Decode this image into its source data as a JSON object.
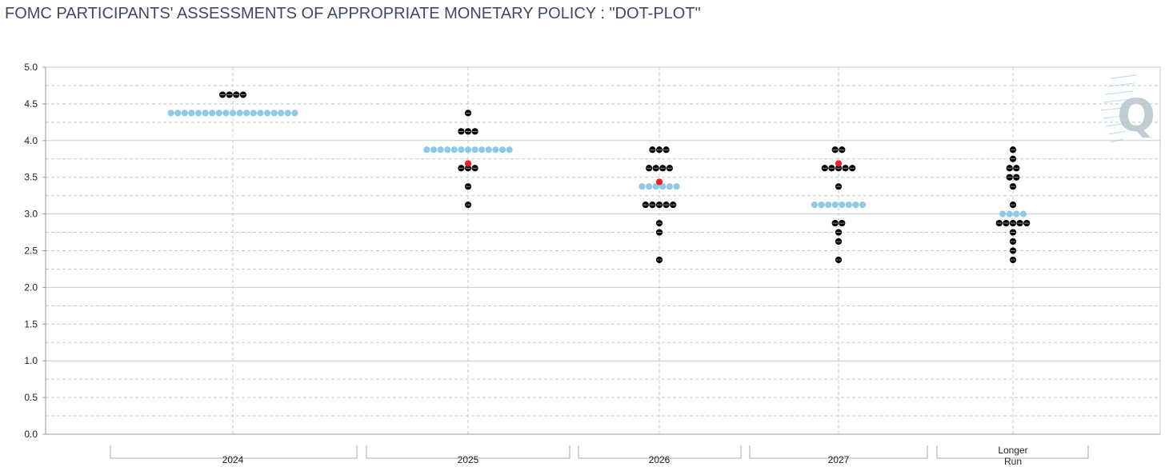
{
  "chart_data": {
    "type": "scatter",
    "title": "FOMC PARTICIPANTS' ASSESSMENTS OF APPROPRIATE MONETARY POLICY : \"DOT-PLOT\"",
    "categories": [
      "2024",
      "2025",
      "2026",
      "2027",
      "Longer Run"
    ],
    "category_lines": [
      [
        "2024"
      ],
      [
        "2025"
      ],
      [
        "2026"
      ],
      [
        "2027"
      ],
      [
        "Longer",
        "Run"
      ]
    ],
    "ylim": [
      0,
      5
    ],
    "ytick_labels": [
      "0.0",
      "0.5",
      "1.0",
      "1.5",
      "2.0",
      "2.5",
      "3.0",
      "3.5",
      "4.0",
      "4.5",
      "5.0"
    ],
    "yticks": [
      0,
      0.5,
      1,
      1.5,
      2,
      2.5,
      3,
      3.5,
      4,
      4.5,
      5
    ],
    "grid": true,
    "series": [
      {
        "color": "#000000",
        "points": [
          {
            "x": "2024",
            "y": 4.625,
            "count": 4
          },
          {
            "x": "2025",
            "y": 4.375,
            "count": 1
          },
          {
            "x": "2025",
            "y": 4.125,
            "count": 3
          },
          {
            "x": "2025",
            "y": 3.625,
            "count": 3
          },
          {
            "x": "2025",
            "y": 3.375,
            "count": 1
          },
          {
            "x": "2025",
            "y": 3.125,
            "count": 1
          },
          {
            "x": "2026",
            "y": 3.875,
            "count": 3
          },
          {
            "x": "2026",
            "y": 3.625,
            "count": 4
          },
          {
            "x": "2026",
            "y": 3.125,
            "count": 5
          },
          {
            "x": "2026",
            "y": 2.875,
            "count": 1
          },
          {
            "x": "2026",
            "y": 2.75,
            "count": 1
          },
          {
            "x": "2026",
            "y": 2.375,
            "count": 1
          },
          {
            "x": "2027",
            "y": 3.875,
            "count": 2
          },
          {
            "x": "2027",
            "y": 3.625,
            "count": 5
          },
          {
            "x": "2027",
            "y": 3.375,
            "count": 1
          },
          {
            "x": "2027",
            "y": 2.875,
            "count": 2
          },
          {
            "x": "2027",
            "y": 2.75,
            "count": 1
          },
          {
            "x": "2027",
            "y": 2.625,
            "count": 1
          },
          {
            "x": "2027",
            "y": 2.375,
            "count": 1
          },
          {
            "x": "Longer Run",
            "y": 3.875,
            "count": 1
          },
          {
            "x": "Longer Run",
            "y": 3.75,
            "count": 1
          },
          {
            "x": "Longer Run",
            "y": 3.625,
            "count": 2
          },
          {
            "x": "Longer Run",
            "y": 3.5,
            "count": 2
          },
          {
            "x": "Longer Run",
            "y": 3.375,
            "count": 1
          },
          {
            "x": "Longer Run",
            "y": 3.125,
            "count": 1
          },
          {
            "x": "Longer Run",
            "y": 2.875,
            "count": 5
          },
          {
            "x": "Longer Run",
            "y": 2.75,
            "count": 1
          },
          {
            "x": "Longer Run",
            "y": 2.625,
            "count": 1
          },
          {
            "x": "Longer Run",
            "y": 2.5,
            "count": 1
          },
          {
            "x": "Longer Run",
            "y": 2.375,
            "count": 1
          }
        ]
      },
      {
        "color": "#8ecae6",
        "points": [
          {
            "x": "2024",
            "y": 4.375,
            "count": 19
          },
          {
            "x": "2025",
            "y": 3.875,
            "count": 13
          },
          {
            "x": "2026",
            "y": 3.375,
            "count": 6
          },
          {
            "x": "2027",
            "y": 3.125,
            "count": 8
          },
          {
            "x": "Longer Run",
            "y": 3.0,
            "count": 4
          }
        ]
      },
      {
        "color": "#e8202a",
        "points": [
          {
            "x": "2025",
            "y": 3.6875,
            "count": 1
          },
          {
            "x": "2026",
            "y": 3.4375,
            "count": 1
          },
          {
            "x": "2027",
            "y": 3.6875,
            "count": 1
          }
        ]
      }
    ]
  },
  "colors": {
    "title": "#3d4a66",
    "grid_solid": "#c8c8c8",
    "grid_dashed": "#c8c8c8",
    "axis": "#999999",
    "watermark": "#b8c4cc",
    "watermark_accent": "#8ecae6"
  },
  "watermark": {
    "icon": "q-logo-icon",
    "glyph": "Q"
  }
}
